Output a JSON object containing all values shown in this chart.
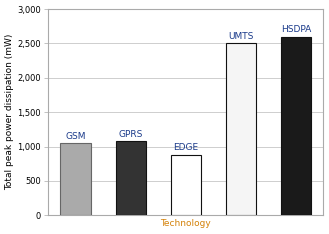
{
  "categories": [
    "GSM",
    "GPRS",
    "EDGE",
    "UMTS",
    "HSDPA"
  ],
  "values": [
    1050,
    1080,
    880,
    2500,
    2600
  ],
  "bar_colors": [
    "#aaaaaa",
    "#333333",
    "#ffffff",
    "#f5f5f5",
    "#1a1a1a"
  ],
  "bar_edgecolors": [
    "#666666",
    "#111111",
    "#111111",
    "#111111",
    "#111111"
  ],
  "label_color": "#1a3a8a",
  "xlabel": "Technology",
  "xlabel_color": "#d4820a",
  "ylabel": "Total peak power dissipation (mW)",
  "ylabel_color": "#000000",
  "ylim": [
    0,
    3000
  ],
  "yticks": [
    0,
    500,
    1000,
    1500,
    2000,
    2500,
    3000
  ],
  "ytick_labels": [
    "0",
    "500",
    "1,000",
    "1,500",
    "2,000",
    "2,500",
    "3,000"
  ],
  "grid_color": "#bbbbbb",
  "background_color": "#ffffff",
  "bar_label_fontsize": 6.5,
  "axis_label_fontsize": 6.5,
  "tick_fontsize": 6.0,
  "bar_width": 0.55
}
